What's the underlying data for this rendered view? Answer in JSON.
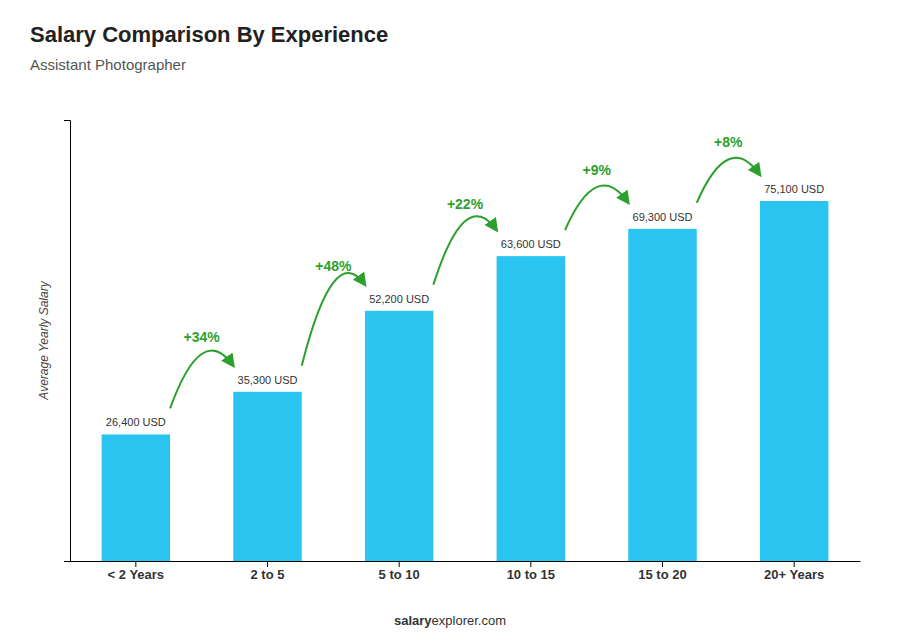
{
  "chart_data": {
    "type": "bar",
    "title": "Salary Comparison By Experience",
    "subtitle": "Assistant Photographer",
    "categories": [
      "< 2 Years",
      "2 to 5",
      "5 to 10",
      "10 to 15",
      "15 to 20",
      "20+ Years"
    ],
    "values": [
      26400,
      35300,
      52200,
      63600,
      69300,
      75100
    ],
    "value_labels": [
      "26,400 USD",
      "35,300 USD",
      "52,200 USD",
      "63,600 USD",
      "69,300 USD",
      "75,100 USD"
    ],
    "data_labels": true,
    "annotations": [
      "+34%",
      "+48%",
      "+22%",
      "+9%",
      "+8%"
    ],
    "ylabel": "Average Yearly Salary",
    "footer": [
      "salary",
      "explorer.com"
    ],
    "color": "#29c4f0",
    "ylim": [
      0,
      92000
    ],
    "grid": false,
    "tick_labels": "x"
  }
}
